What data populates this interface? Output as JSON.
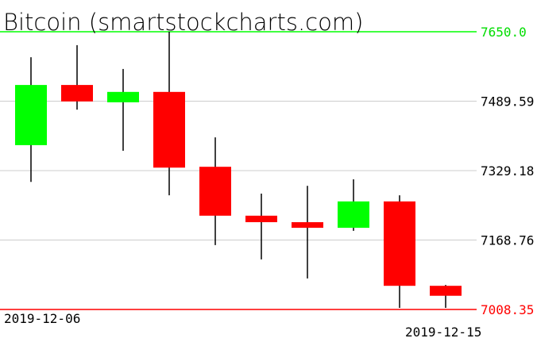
{
  "chart_data": {
    "type": "candlestick",
    "title": "Bitcoin (smartstockcharts.com)",
    "x_labels": [
      "2019-12-06",
      "2019-12-15"
    ],
    "ylim": [
      7008.35,
      7650.0
    ],
    "y_ticks": [
      "7650.0",
      "7489.59",
      "7329.18",
      "7168.76",
      "7008.35"
    ],
    "grid": true,
    "colors": {
      "up": "#00ff00",
      "down": "#ff0000",
      "wick": "#000000",
      "grid": "#cccccc",
      "top_line": "#00ff00",
      "bottom_line": "#ff0000"
    },
    "candles": [
      {
        "open": 7388,
        "high": 7591,
        "low": 7303,
        "close": 7527
      },
      {
        "open": 7527,
        "high": 7619,
        "low": 7470,
        "close": 7489
      },
      {
        "open": 7487,
        "high": 7564,
        "low": 7375,
        "close": 7511
      },
      {
        "open": 7511,
        "high": 7650,
        "low": 7272,
        "close": 7336
      },
      {
        "open": 7338,
        "high": 7406,
        "low": 7157,
        "close": 7225
      },
      {
        "open": 7225,
        "high": 7276,
        "low": 7124,
        "close": 7210
      },
      {
        "open": 7210,
        "high": 7294,
        "low": 7080,
        "close": 7197
      },
      {
        "open": 7197,
        "high": 7309,
        "low": 7190,
        "close": 7258
      },
      {
        "open": 7258,
        "high": 7272,
        "low": 7012,
        "close": 7063
      },
      {
        "open": 7063,
        "high": 7065,
        "low": 7012,
        "close": 7040
      }
    ]
  }
}
